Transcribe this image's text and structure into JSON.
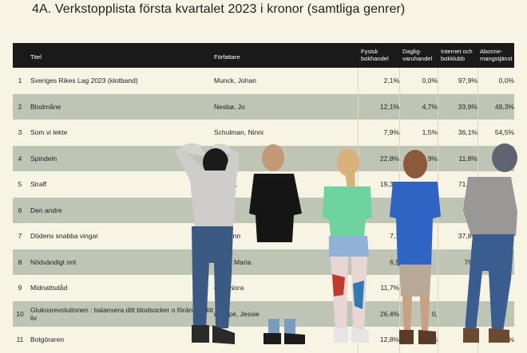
{
  "title": "4A. Verkstopplista första kvartalet 2023 i kronor (samtliga genrer)",
  "table": {
    "headers": {
      "title": "Titel",
      "author": "Författare",
      "fysisk": [
        "Fysisk",
        "bokhandel"
      ],
      "daglig": [
        "Daglig-",
        "varuhandel"
      ],
      "internet": [
        "Internet och",
        "bokklubb"
      ],
      "abonne": [
        "Abonne-",
        "mangstjänst"
      ]
    },
    "rows": [
      {
        "num": "1",
        "title": "Sveriges Rikes Lag 2023 (klotband)",
        "author": "Munck, Johan",
        "v1": "2,1%",
        "v2": "0,0%",
        "v3": "97,9%",
        "v4": "0,0%"
      },
      {
        "num": "2",
        "title": "Blodmåne",
        "author": "Nesbø, Jo",
        "v1": "12,1%",
        "v2": "4,7%",
        "v3": "33,9%",
        "v4": "49,3%"
      },
      {
        "num": "3",
        "title": "Som vi lekte",
        "author": "Schulman, Ninni",
        "v1": "7,9%",
        "v2": "1,5%",
        "v3": "36,1%",
        "v4": "54,5%"
      },
      {
        "num": "4",
        "title": "Spindeln",
        "author": "Lars",
        "v1": "22,8%",
        "v2": "9%",
        "v3": "11,8%",
        "v4": ""
      },
      {
        "num": "5",
        "title": "Straff",
        "author": "stadius,",
        "v1": "19,3%",
        "v2": "",
        "v3": "71,0%",
        "v4": ""
      },
      {
        "num": "6",
        "title": "Den andre",
        "author": "Harry",
        "v1": "44,",
        "v2": "",
        "v3": "44",
        "v4": ""
      },
      {
        "num": "7",
        "title": "Dödens snabba vingar",
        "author": "son, Ann",
        "v1": "7,1",
        "v2": "",
        "v3": "37,8%",
        "v4": ""
      },
      {
        "num": "8",
        "title": "Nödvändigt ont",
        "author": "fsson, Maria",
        "v1": "6,5",
        "v2": "",
        "v3": "76,7",
        "v4": ""
      },
      {
        "num": "9",
        "title": "Midnattsdåd",
        "author": "erts, Nora",
        "v1": "11,7%",
        "v2": "",
        "v3": "60,",
        "v4": ""
      },
      {
        "num": "10",
        "title": "Glukosrevolutionen : balansera ditt blodsocker o förändra ditt liv",
        "author": "nauspé, Jessie",
        "v1": "26,4%",
        "v2": "0,",
        "v3": "73,",
        "v4": ""
      },
      {
        "num": "11",
        "title": "Botgöraren",
        "author": "Viveca",
        "v1": "12,8%",
        "v2": "25",
        "v3": "",
        "v4": "6%"
      }
    ]
  }
}
